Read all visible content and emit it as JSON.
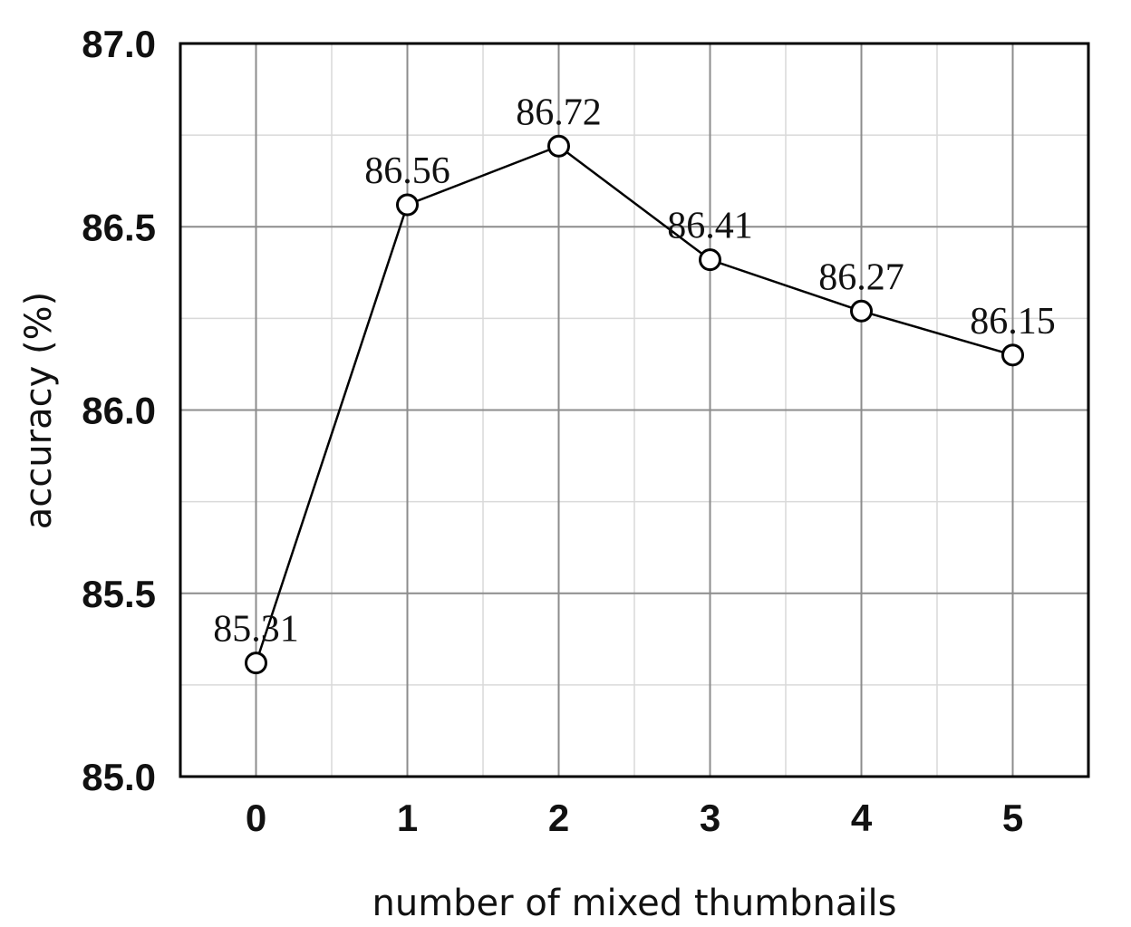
{
  "chart_data": {
    "type": "line",
    "x": [
      0,
      1,
      2,
      3,
      4,
      5
    ],
    "categories": [
      "0",
      "1",
      "2",
      "3",
      "4",
      "5"
    ],
    "series": [
      {
        "values": [
          85.31,
          86.56,
          86.72,
          86.41,
          86.27,
          86.15
        ]
      }
    ],
    "data_labels": [
      "85.31",
      "86.56",
      "86.72",
      "86.41",
      "86.27",
      "86.15"
    ],
    "xlabel": "number of mixed thumbnails",
    "ylabel": "accuracy (%)",
    "ylim": [
      85.0,
      87.0
    ],
    "xlim": [
      -0.5,
      5.5
    ],
    "yticks": [
      85.0,
      85.5,
      86.0,
      86.5,
      87.0
    ],
    "ytick_labels": [
      "85.0",
      "85.5",
      "86.0",
      "86.5",
      "87.0"
    ],
    "minor_yticks": [
      85.25,
      85.75,
      86.25,
      86.75
    ],
    "minor_xticks": [
      0.5,
      1.5,
      2.5,
      3.5,
      4.5
    ],
    "grid": true,
    "colors": {
      "line": "#000000",
      "marker_fill": "#ffffff",
      "grid_major": "#8c8c8c",
      "grid_minor": "#d9d9d9"
    }
  }
}
